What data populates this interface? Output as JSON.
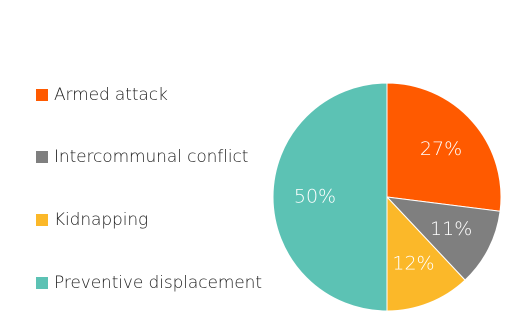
{
  "chart_data": {
    "type": "pie",
    "title": "",
    "categories": [
      "Armed attack",
      "Intercommunal conflict",
      "Kidnapping",
      "Preventive displacement"
    ],
    "values": [
      27,
      11,
      12,
      50
    ],
    "labels": [
      "27%",
      "11%",
      "12%",
      "50%"
    ],
    "colors": [
      "#ff5a00",
      "#7f7f7f",
      "#fbb829",
      "#5cc2b4"
    ],
    "legend_position": "left",
    "start_angle": "12 o'clock",
    "direction": "clockwise"
  }
}
